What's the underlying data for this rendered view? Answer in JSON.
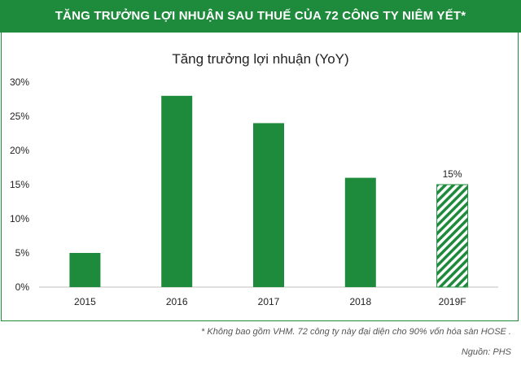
{
  "header": {
    "title": "TĂNG TRƯỞNG LỢI NHUẬN SAU THUẾ CỦA 72 CÔNG TY NIÊM YẾT*"
  },
  "colors": {
    "accent": "#1e8a3c",
    "bar": "#1e8a3c"
  },
  "chart_data": {
    "type": "bar",
    "title": "Tăng trưởng lợi nhuận (YoY)",
    "xlabel": "",
    "ylabel": "",
    "categories": [
      "2015",
      "2016",
      "2017",
      "2018",
      "2019F"
    ],
    "values": [
      5,
      28,
      24,
      16,
      15
    ],
    "hatched": [
      false,
      false,
      false,
      false,
      true
    ],
    "data_labels": [
      "",
      "",
      "",
      "",
      "15%"
    ],
    "ylim": [
      0,
      30
    ],
    "yticks": [
      "0%",
      "5%",
      "10%",
      "15%",
      "20%",
      "25%",
      "30%"
    ],
    "yticks_values": [
      0,
      5,
      10,
      15,
      20,
      25,
      30
    ],
    "grid": false,
    "legend": "none"
  },
  "footer": {
    "note": "* Không bao gồm VHM. 72 công ty này đại diện cho 90% vốn hóa sàn HOSE .",
    "source": "Nguồn: PHS"
  }
}
